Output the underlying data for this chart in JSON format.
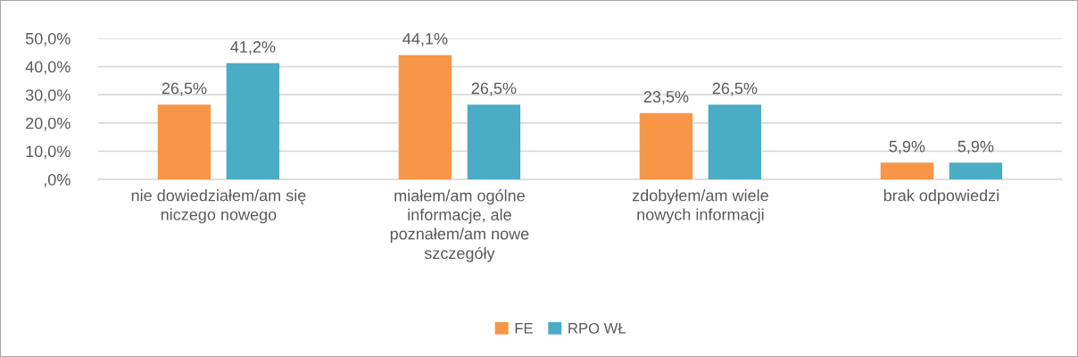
{
  "chart_data": {
    "type": "bar",
    "categories": [
      "nie dowiedziałem/am się\nniczego nowego",
      "miałem/am ogólne\ninformacje, ale\npoznałem/am nowe\nszczegóły",
      "zdobyłem/am wiele\nnowych informacji",
      "brak odpowiedzi"
    ],
    "series": [
      {
        "name": "FE",
        "color": "#f79646",
        "values": [
          26.5,
          44.1,
          23.5,
          5.9
        ],
        "value_labels": [
          "26,5%",
          "44,1%",
          "23,5%",
          "5,9%"
        ]
      },
      {
        "name": "RPO WŁ",
        "color": "#4bacc6",
        "values": [
          41.2,
          26.5,
          26.5,
          5.9
        ],
        "value_labels": [
          "41,2%",
          "26,5%",
          "26,5%",
          "5,9%"
        ]
      }
    ],
    "ylim": [
      0,
      50
    ],
    "yticks": [
      {
        "value": 0,
        "label": ",0%"
      },
      {
        "value": 10,
        "label": "10,0%"
      },
      {
        "value": 20,
        "label": "20,0%"
      },
      {
        "value": 30,
        "label": "30,0%"
      },
      {
        "value": 40,
        "label": "40,0%"
      },
      {
        "value": 50,
        "label": "50,0%"
      }
    ],
    "grid": "y",
    "legend": "bottom"
  }
}
